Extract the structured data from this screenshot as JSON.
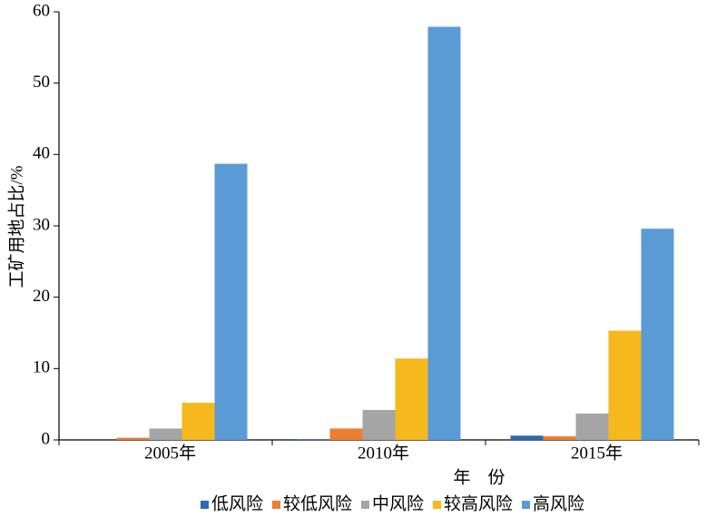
{
  "chart_data": {
    "type": "bar",
    "x_label": "年　份",
    "y_label": "工矿用地占比/%",
    "categories": [
      "2005年",
      "2010年",
      "2015年"
    ],
    "series": [
      {
        "name": "低风险",
        "color": "#3366b3",
        "values": [
          0,
          0.1,
          0.6
        ]
      },
      {
        "name": "较低风险",
        "color": "#ed7d31",
        "values": [
          0.3,
          1.6,
          0.5
        ]
      },
      {
        "name": "中风险",
        "color": "#a5a5a5",
        "values": [
          1.6,
          4.2,
          3.7
        ]
      },
      {
        "name": "较高风险",
        "color": "#f5b81d",
        "values": [
          5.2,
          11.4,
          15.3
        ]
      },
      {
        "name": "高风险",
        "color": "#5b9bd5",
        "values": [
          38.7,
          57.9,
          29.6
        ]
      }
    ],
    "ylim": [
      0,
      60
    ],
    "yticks": [
      0,
      10,
      20,
      30,
      40,
      50,
      60
    ],
    "legend": "bottom"
  }
}
